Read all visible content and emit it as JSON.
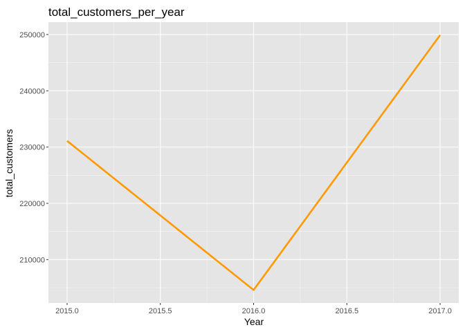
{
  "chart_data": {
    "type": "line",
    "title": "total_customers_per_year",
    "xlabel": "Year",
    "ylabel": "total_customers",
    "x": [
      2015,
      2016,
      2017
    ],
    "series": [
      {
        "values": [
          231100,
          204600,
          249900
        ],
        "color": "#FF9900"
      }
    ],
    "xlim": [
      2014.9,
      2017.1
    ],
    "ylim": [
      202300,
      252200
    ],
    "x_ticks": [
      2015,
      2015.5,
      2016,
      2016.5,
      2017
    ],
    "x_tick_labels": [
      "2015.0",
      "2015.5",
      "2016.0",
      "2016.5",
      "2017.0"
    ],
    "y_ticks": [
      210000,
      220000,
      230000,
      240000,
      250000
    ],
    "y_tick_labels": [
      "210000",
      "220000",
      "230000",
      "240000",
      "250000"
    ],
    "grid": true,
    "legend": "none",
    "panel_background": "#E5E5E5",
    "grid_color": "#FFFFFF"
  }
}
